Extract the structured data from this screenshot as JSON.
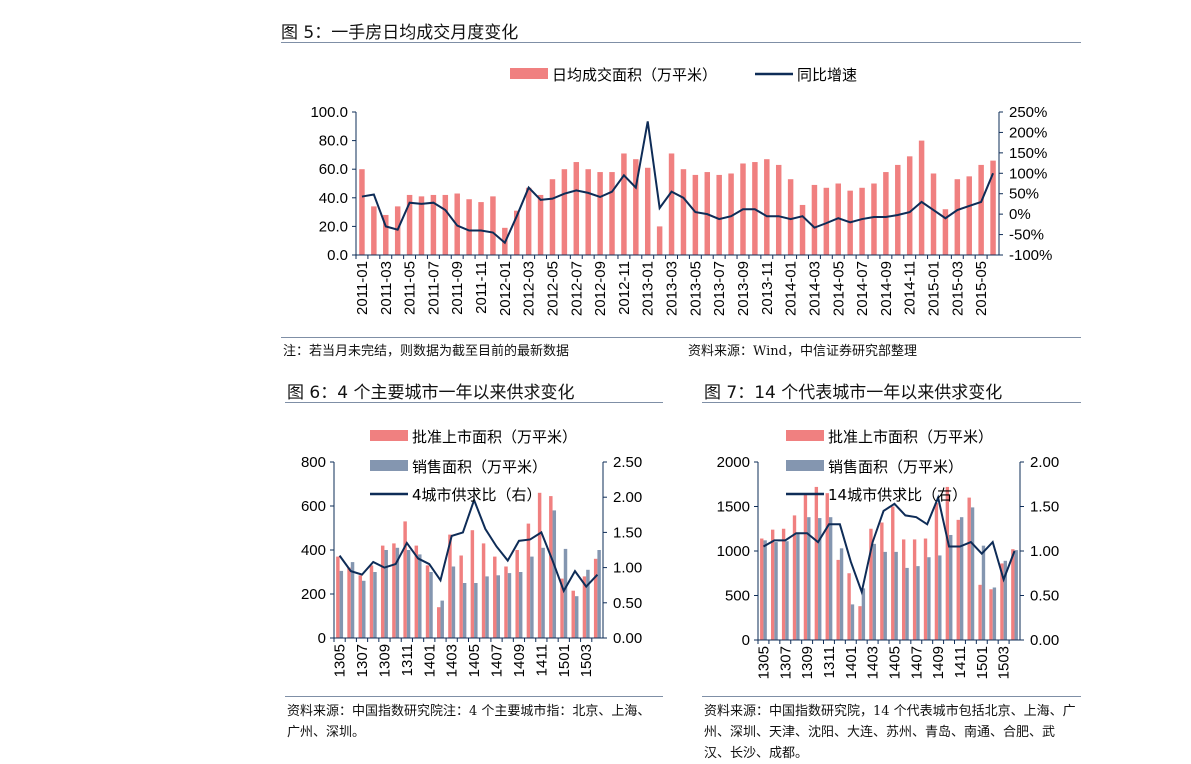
{
  "fig5": {
    "title": "图 5：一手房日均成交月度变化",
    "note_left": "注：若当月未完结，则数据为截至目前的最新数据",
    "note_right": "资料来源：Wind，中信证券研究部整理",
    "chart_data": {
      "type": "bar",
      "title": "图 5：一手房日均成交月度变化",
      "categories": [
        "2011-01",
        "2011-02",
        "2011-03",
        "2011-04",
        "2011-05",
        "2011-06",
        "2011-07",
        "2011-08",
        "2011-09",
        "2011-10",
        "2011-11",
        "2011-12",
        "2012-01",
        "2012-02",
        "2012-03",
        "2012-04",
        "2012-05",
        "2012-06",
        "2012-07",
        "2012-08",
        "2012-09",
        "2012-10",
        "2012-11",
        "2012-12",
        "2013-01",
        "2013-02",
        "2013-03",
        "2013-04",
        "2013-05",
        "2013-06",
        "2013-07",
        "2013-08",
        "2013-09",
        "2013-10",
        "2013-11",
        "2013-12",
        "2014-01",
        "2014-02",
        "2014-03",
        "2014-04",
        "2014-05",
        "2014-06",
        "2014-07",
        "2014-08",
        "2014-09",
        "2014-10",
        "2014-11",
        "2014-12",
        "2015-01",
        "2015-02",
        "2015-03",
        "2015-04",
        "2015-05",
        "2015-06"
      ],
      "tick_labels": [
        "2011-01",
        "2011-03",
        "2011-05",
        "2011-07",
        "2011-09",
        "2011-11",
        "2012-01",
        "2012-03",
        "2012-05",
        "2012-07",
        "2012-09",
        "2012-11",
        "2013-01",
        "2013-03",
        "2013-05",
        "2013-07",
        "2013-09",
        "2013-11",
        "2014-01",
        "2014-03",
        "2014-05",
        "2014-07",
        "2014-09",
        "2014-11",
        "2015-01",
        "2015-03",
        "2015-05"
      ],
      "series": [
        {
          "name": "日均成交面积（万平米）",
          "axis": "left",
          "kind": "bar",
          "values": [
            60,
            34,
            28,
            34,
            42,
            41,
            42,
            42,
            43,
            39,
            37,
            41,
            19,
            31,
            47,
            42,
            53,
            60,
            65,
            60,
            58,
            58,
            71,
            67,
            61,
            20,
            71,
            60,
            56,
            58,
            56,
            57,
            64,
            65,
            67,
            63,
            53,
            35,
            49,
            47,
            50,
            45,
            47,
            50,
            58,
            63,
            69,
            80,
            57,
            32,
            53,
            55,
            63,
            66
          ]
        },
        {
          "name": "同比增速",
          "axis": "right",
          "kind": "line",
          "values": [
            43,
            48,
            -30,
            -38,
            28,
            25,
            28,
            10,
            -28,
            -40,
            -40,
            -45,
            -70,
            -5,
            65,
            35,
            38,
            50,
            58,
            52,
            42,
            55,
            95,
            65,
            227,
            15,
            55,
            40,
            5,
            0,
            -12,
            -5,
            12,
            12,
            -5,
            -5,
            -12,
            -5,
            -33,
            -22,
            -10,
            -20,
            -12,
            -7,
            -7,
            -2,
            5,
            30,
            10,
            -10,
            10,
            20,
            30,
            100
          ]
        }
      ],
      "y_left": {
        "ticks": [
          "100.0",
          "80.0",
          "60.0",
          "40.0",
          "20.0",
          "0.0"
        ],
        "range": [
          0,
          100
        ]
      },
      "y_right": {
        "ticks": [
          "250%",
          "200%",
          "150%",
          "100%",
          "50%",
          "0%",
          "-50%",
          "-100%"
        ],
        "range": [
          -100,
          250
        ]
      },
      "legend_position": "top"
    }
  },
  "fig6": {
    "title": "图 6：4 个主要城市一年以来供求变化",
    "note": "资料来源：中国指数研究院注：4 个主要城市指：北京、上海、广州、深圳。",
    "chart_data": {
      "type": "bar",
      "title": "图 6：4 个主要城市一年以来供求变化",
      "categories": [
        "1305",
        "1306",
        "1307",
        "1308",
        "1309",
        "1310",
        "1311",
        "1312",
        "1401",
        "1402",
        "1403",
        "1404",
        "1405",
        "1406",
        "1407",
        "1408",
        "1409",
        "1410",
        "1411",
        "1412",
        "1501",
        "1502",
        "1503",
        "1504"
      ],
      "tick_labels": [
        "1305",
        "1307",
        "1309",
        "1311",
        "1401",
        "1403",
        "1405",
        "1407",
        "1409",
        "1411",
        "1501",
        "1503"
      ],
      "series": [
        {
          "name": "批准上市面积（万平米）",
          "axis": "left",
          "kind": "bar",
          "values": [
            370,
            320,
            285,
            330,
            420,
            430,
            530,
            420,
            330,
            140,
            470,
            375,
            490,
            430,
            370,
            325,
            400,
            520,
            660,
            645,
            270,
            215,
            280,
            360
          ]
        },
        {
          "name": "销售面积（万平米）",
          "axis": "left",
          "kind": "bar",
          "values": [
            305,
            345,
            260,
            300,
            400,
            410,
            400,
            380,
            300,
            170,
            325,
            250,
            250,
            280,
            285,
            295,
            300,
            370,
            410,
            580,
            405,
            190,
            310,
            400
          ]
        },
        {
          "name": "4城市供求比（右）",
          "axis": "right",
          "kind": "line",
          "values": [
            1.17,
            0.95,
            0.9,
            1.08,
            1.0,
            1.05,
            1.35,
            1.13,
            1.05,
            0.82,
            1.45,
            1.5,
            1.96,
            1.55,
            1.3,
            1.1,
            1.38,
            1.4,
            1.5,
            1.1,
            0.67,
            0.95,
            0.73,
            0.9
          ]
        }
      ],
      "y_left": {
        "ticks": [
          "800",
          "600",
          "400",
          "200",
          "0"
        ],
        "range": [
          0,
          800
        ]
      },
      "y_right": {
        "ticks": [
          "2.50",
          "2.00",
          "1.50",
          "1.00",
          "0.50",
          "0.00"
        ],
        "range": [
          0,
          2.5
        ]
      },
      "legend_position": "top"
    }
  },
  "fig7": {
    "title": "图 7：14 个代表城市一年以来供求变化",
    "note": "资料来源：中国指数研究院，14 个代表城市包括北京、上海、广州、深圳、天津、沈阳、大连、苏州、青岛、南通、合肥、武汉、长沙、成都。",
    "chart_data": {
      "type": "bar",
      "title": "图 7：14 个代表城市一年以来供求变化",
      "categories": [
        "1305",
        "1306",
        "1307",
        "1308",
        "1309",
        "1310",
        "1311",
        "1312",
        "1401",
        "1402",
        "1403",
        "1404",
        "1405",
        "1406",
        "1407",
        "1408",
        "1409",
        "1410",
        "1411",
        "1412",
        "1501",
        "1502",
        "1503",
        "1504"
      ],
      "tick_labels": [
        "1305",
        "1307",
        "1309",
        "1311",
        "1401",
        "1403",
        "1405",
        "1407",
        "1409",
        "1411",
        "1501",
        "1503"
      ],
      "series": [
        {
          "name": "批准上市面积（万平米）",
          "axis": "left",
          "kind": "bar",
          "values": [
            1140,
            1240,
            1250,
            1400,
            1630,
            1720,
            1650,
            900,
            750,
            380,
            1250,
            1320,
            1500,
            1130,
            1130,
            1140,
            1540,
            1720,
            1350,
            1600,
            620,
            570,
            860,
            1020
          ]
        },
        {
          "name": "销售面积（万平米）",
          "axis": "left",
          "kind": "bar",
          "values": [
            1120,
            1100,
            1110,
            1200,
            1380,
            1370,
            1380,
            1030,
            400,
            580,
            1080,
            990,
            990,
            810,
            830,
            930,
            950,
            1180,
            1380,
            1490,
            1060,
            590,
            890,
            1010
          ]
        },
        {
          "name": "14城市供求比（右）",
          "axis": "right",
          "kind": "line",
          "values": [
            1.05,
            1.12,
            1.12,
            1.2,
            1.2,
            1.1,
            1.3,
            1.3,
            0.88,
            0.54,
            1.1,
            1.45,
            1.53,
            1.4,
            1.38,
            1.3,
            1.6,
            1.05,
            1.05,
            1.1,
            0.97,
            1.1,
            0.68,
            1.0
          ]
        }
      ],
      "y_left": {
        "ticks": [
          "2000",
          "1500",
          "1000",
          "500",
          "0"
        ],
        "range": [
          0,
          2000
        ]
      },
      "y_right": {
        "ticks": [
          "2.00",
          "1.50",
          "1.00",
          "0.50",
          "0.00"
        ],
        "range": [
          0,
          2.0
        ]
      },
      "legend_position": "top"
    }
  },
  "colors": {
    "bar_primary": "#f08080",
    "bar_secondary": "#8496b0",
    "line": "#0e2c57",
    "axis": "#0e2c57"
  }
}
